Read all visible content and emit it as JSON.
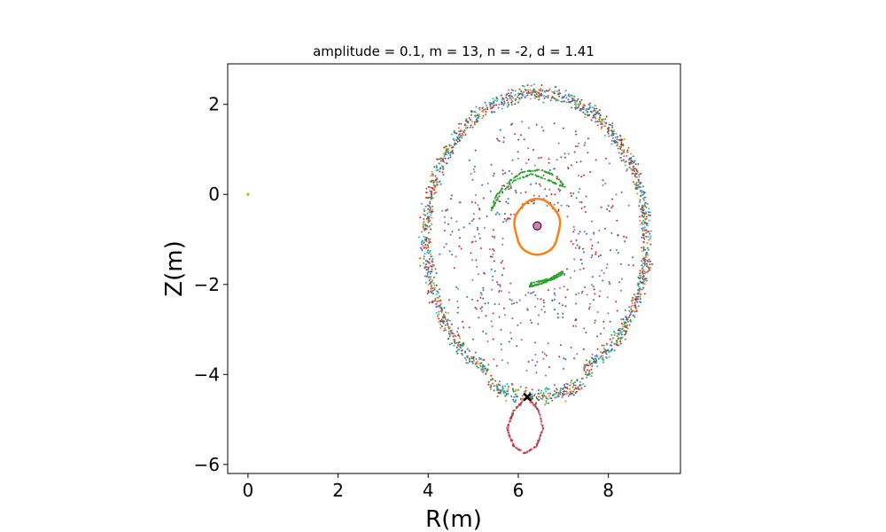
{
  "chart_data": {
    "type": "scatter",
    "title": "amplitude = 0.1, m = 13, n = -2, d = 1.41",
    "xlabel": "R(m)",
    "ylabel": "Z(m)",
    "xlim": [
      -0.45,
      9.6
    ],
    "ylim": [
      -6.2,
      2.9
    ],
    "xticks": [
      0,
      2,
      4,
      6,
      8
    ],
    "yticks": [
      2,
      0,
      -2,
      -4,
      -6
    ],
    "grid": false,
    "colors": [
      "#1f77b4",
      "#ff7f0e",
      "#2ca02c",
      "#d62728",
      "#9467bd",
      "#8c564b",
      "#e377c2",
      "#7f7f7f",
      "#bcbd22",
      "#17becf"
    ],
    "magnetic_axis": {
      "R": 6.42,
      "Z": -0.7,
      "color": "#e377c2"
    },
    "x_point": {
      "R": 6.2,
      "Z": -4.5
    },
    "stray_point": {
      "R": 0.0,
      "Z": 0.0,
      "color": "#bcbd22"
    },
    "series": [
      {
        "kind": "chaotic_layer",
        "center": [
          6.4,
          -1.0
        ],
        "semi_axes": [
          2.45,
          3.25
        ],
        "spread": 0.22,
        "count": 1800,
        "colors": [
          0,
          1,
          2,
          3,
          4,
          5,
          9
        ]
      },
      {
        "kind": "inner_chaos",
        "center": [
          6.4,
          -1.2
        ],
        "semi_axes": [
          2.1,
          2.75
        ],
        "spread": 0.55,
        "count": 500,
        "colors": [
          3,
          4,
          0
        ]
      },
      {
        "kind": "closed_surface",
        "center": [
          6.42,
          -0.72
        ],
        "semi_axes": [
          0.5,
          0.62
        ],
        "count": 300,
        "color": 1
      },
      {
        "kind": "island_upper",
        "points": [
          [
            5.4,
            -0.35
          ],
          [
            5.5,
            -0.05
          ],
          [
            5.75,
            0.25
          ],
          [
            6.1,
            0.5
          ],
          [
            6.5,
            0.55
          ],
          [
            6.85,
            0.4
          ],
          [
            7.05,
            0.15
          ],
          [
            6.7,
            0.3
          ],
          [
            6.3,
            0.45
          ],
          [
            5.9,
            0.3
          ],
          [
            5.6,
            0.0
          ],
          [
            5.4,
            -0.35
          ]
        ],
        "color": 2
      },
      {
        "kind": "island_lower",
        "points": [
          [
            6.25,
            -2.05
          ],
          [
            6.6,
            -1.95
          ],
          [
            6.95,
            -1.8
          ],
          [
            7.0,
            -1.7
          ],
          [
            6.7,
            -1.88
          ],
          [
            6.3,
            -1.97
          ],
          [
            6.25,
            -2.05
          ]
        ],
        "color": 2
      },
      {
        "kind": "divertor_lobe",
        "points": [
          [
            6.2,
            -4.5
          ],
          [
            6.45,
            -4.8
          ],
          [
            6.55,
            -5.2
          ],
          [
            6.4,
            -5.6
          ],
          [
            6.15,
            -5.75
          ],
          [
            5.9,
            -5.6
          ],
          [
            5.75,
            -5.2
          ],
          [
            5.9,
            -4.8
          ],
          [
            6.2,
            -4.5
          ]
        ],
        "colors": [
          5,
          6,
          3
        ]
      }
    ]
  }
}
